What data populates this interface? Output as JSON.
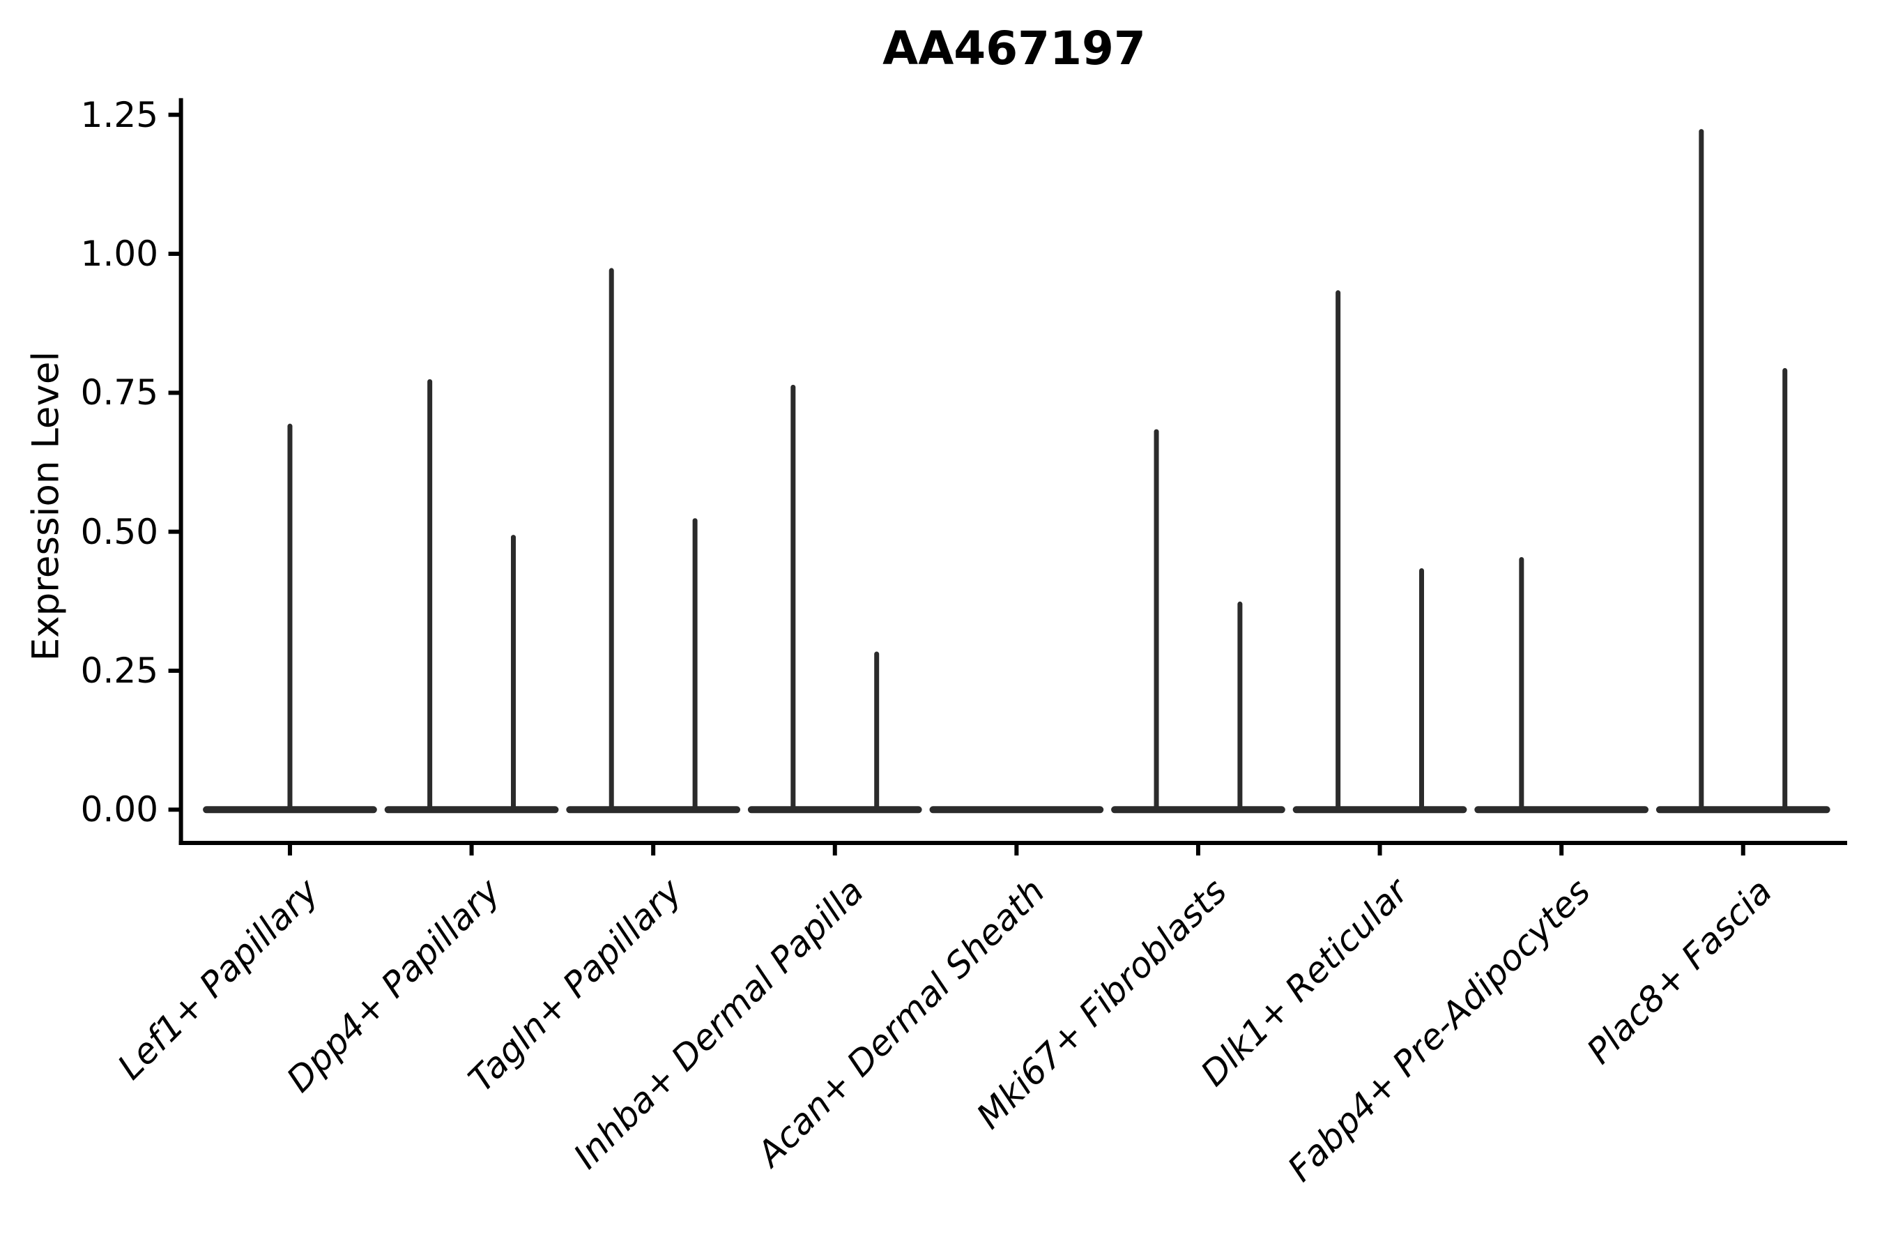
{
  "chart_data": {
    "type": "violin",
    "title": "AA467197",
    "ylabel": "Expression Level",
    "xlabel": "",
    "grid": false,
    "legend": null,
    "axis_color": "#000000",
    "violin_color": "#2b2b2b",
    "ylim": [
      -0.06,
      1.28
    ],
    "xlim": [
      0.4,
      9.57
    ],
    "ytick_labels": [
      "0.00",
      "0.25",
      "0.50",
      "0.75",
      "1.00",
      "1.25"
    ],
    "ytick_values": [
      0.0,
      0.25,
      0.5,
      0.75,
      1.0,
      1.25
    ],
    "categories": [
      "Lef1+ Papillary",
      "Dpp4+ Papillary",
      "Tagln+ Papillary",
      "Inhba+ Dermal Papilla",
      "Acan+ Dermal Sheath",
      "Mki67+ Fibroblasts",
      "Dlk1+ Reticular",
      "Fabp4+ Pre-Adipocytes",
      "Plac8+ Fascia"
    ],
    "base_halfwidth": 0.46,
    "violins": [
      {
        "category": "Lef1+ Papillary",
        "position": 1,
        "spikes": [
          {
            "offset": 0.0,
            "max": 0.69
          }
        ]
      },
      {
        "category": "Dpp4+ Papillary",
        "position": 2,
        "spikes": [
          {
            "offset": -0.23,
            "max": 0.77
          },
          {
            "offset": 0.23,
            "max": 0.49
          }
        ]
      },
      {
        "category": "Tagln+ Papillary",
        "position": 3,
        "spikes": [
          {
            "offset": -0.23,
            "max": 0.97
          },
          {
            "offset": 0.23,
            "max": 0.52
          }
        ]
      },
      {
        "category": "Inhba+ Dermal Papilla",
        "position": 4,
        "spikes": [
          {
            "offset": -0.23,
            "max": 0.76
          },
          {
            "offset": 0.23,
            "max": 0.28
          }
        ]
      },
      {
        "category": "Acan+ Dermal Sheath",
        "position": 5,
        "spikes": []
      },
      {
        "category": "Mki67+ Fibroblasts",
        "position": 6,
        "spikes": [
          {
            "offset": -0.23,
            "max": 0.68
          },
          {
            "offset": 0.23,
            "max": 0.37
          }
        ]
      },
      {
        "category": "Dlk1+ Reticular",
        "position": 7,
        "spikes": [
          {
            "offset": -0.23,
            "max": 0.93
          },
          {
            "offset": 0.23,
            "max": 0.43
          }
        ]
      },
      {
        "category": "Fabp4+ Pre-Adipocytes",
        "position": 8,
        "spikes": [
          {
            "offset": -0.22,
            "max": 0.45
          }
        ]
      },
      {
        "category": "Plac8+ Fascia",
        "position": 9,
        "spikes": [
          {
            "offset": -0.23,
            "max": 1.22
          },
          {
            "offset": 0.23,
            "max": 0.79
          }
        ]
      }
    ]
  }
}
